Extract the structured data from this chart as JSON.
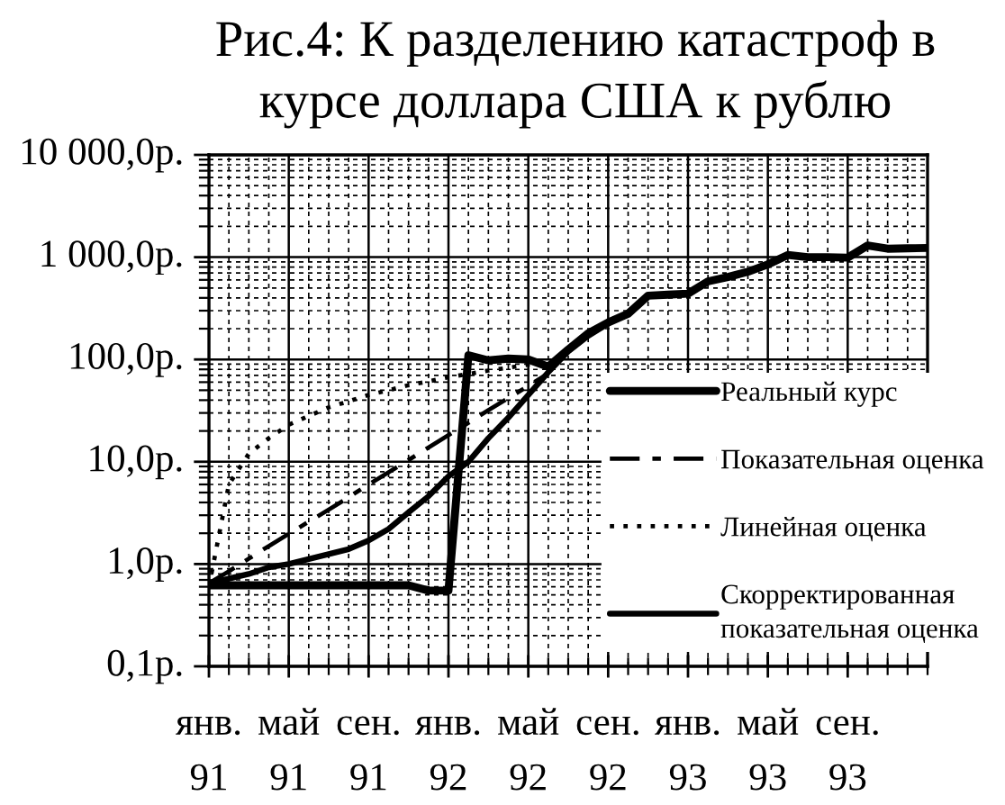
{
  "chart_data": {
    "type": "line",
    "title": "Рис.4: К разделению катастроф в\nкурсе доллара США к рублю",
    "categories": [
      "янв.\n91",
      null,
      null,
      null,
      "май\n91",
      null,
      null,
      null,
      "сен.\n91",
      null,
      null,
      null,
      "янв.\n92",
      null,
      null,
      null,
      "май\n92",
      null,
      null,
      null,
      "сен.\n92",
      null,
      null,
      null,
      "янв.\n93",
      null,
      null,
      null,
      "май\n93",
      null,
      null,
      null,
      "сен.\n93",
      null,
      null,
      null,
      null
    ],
    "series": [
      {
        "name": "Реальный курс",
        "color": "#000000",
        "line_style": "solid",
        "values": [
          0.62,
          0.62,
          0.62,
          0.62,
          0.62,
          0.62,
          0.62,
          0.62,
          0.62,
          0.62,
          0.62,
          0.55,
          0.55,
          110,
          98,
          102,
          100,
          85,
          125,
          180,
          230,
          280,
          420,
          430,
          440,
          580,
          640,
          720,
          850,
          1050,
          1000,
          1000,
          990,
          1300,
          1210,
          1220,
          1230
        ]
      },
      {
        "name": "Показательная оценка",
        "color": "#000000",
        "line_style": "dashdot",
        "values": [
          0.65,
          0.85,
          1.13,
          1.5,
          1.97,
          2.6,
          3.4,
          4.5,
          6,
          7.9,
          10.4,
          13.8,
          18.2,
          24,
          32,
          42,
          55,
          73,
          null,
          null,
          null,
          null,
          null,
          null,
          null,
          null,
          null,
          null,
          null,
          null,
          null,
          null,
          null,
          null,
          null,
          null,
          null
        ]
      },
      {
        "name": "Линейная оценка",
        "color": "#000000",
        "line_style": "dotted",
        "values": [
          0.6,
          6,
          12,
          17,
          23,
          28,
          34,
          39,
          45,
          50,
          56,
          61,
          67,
          72,
          78,
          83,
          89,
          94,
          null,
          null,
          null,
          null,
          null,
          null,
          null,
          null,
          null,
          null,
          null,
          null,
          null,
          null,
          null,
          null,
          null,
          null,
          null
        ]
      },
      {
        "name": "Скорректированная\nпоказательная оценка",
        "color": "#000000",
        "line_style": "solid",
        "values": [
          0.65,
          0.72,
          0.8,
          0.93,
          1,
          1.12,
          1.25,
          1.4,
          1.7,
          2.2,
          3.2,
          4.6,
          7.2,
          10,
          17,
          27,
          45,
          75,
          120,
          170,
          225,
          null,
          null,
          null,
          null,
          null,
          null,
          null,
          null,
          null,
          null,
          null,
          null,
          null,
          null,
          null,
          null
        ]
      }
    ],
    "log": true,
    "ylim": [
      0.1,
      10000
    ],
    "yticks": [
      {
        "value": 0.1,
        "label": "0,1р."
      },
      {
        "value": 1,
        "label": "1,0р."
      },
      {
        "value": 10,
        "label": "10,0р."
      },
      {
        "value": 100,
        "label": "100,0р."
      },
      {
        "value": 1000,
        "label": "1 000,0р."
      },
      {
        "value": 10000,
        "label": "10 000,0р."
      }
    ],
    "grid": true,
    "legend": "bottom right"
  }
}
